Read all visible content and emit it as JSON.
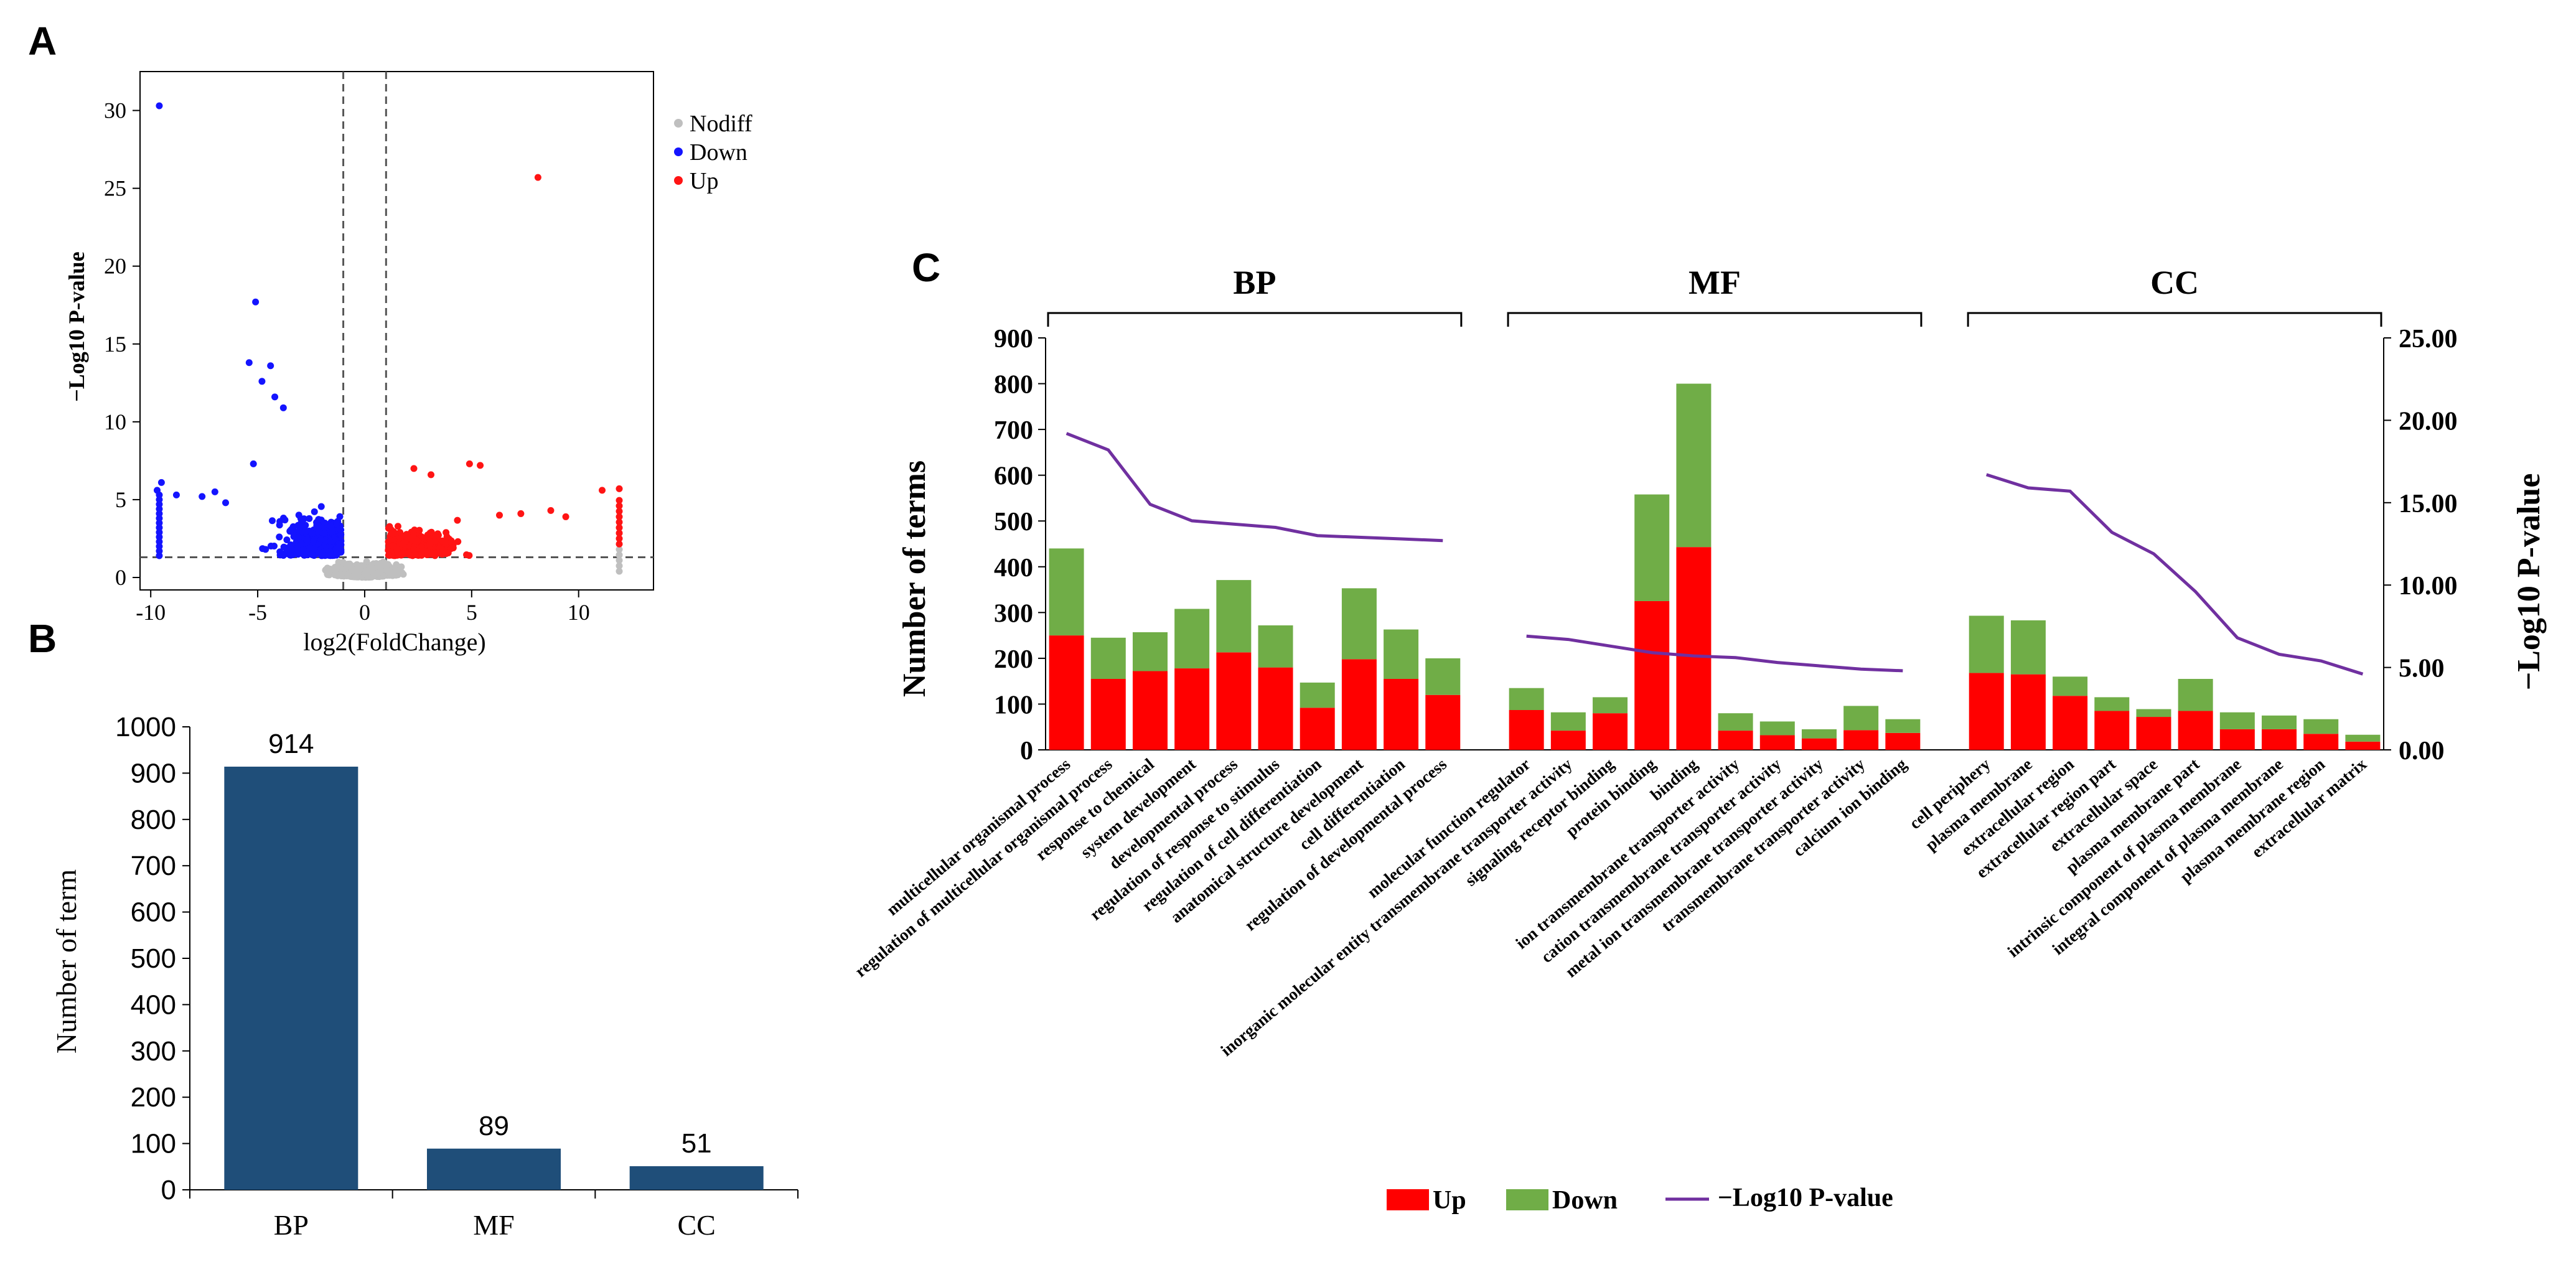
{
  "panel_labels": {
    "a": "A",
    "b": "B",
    "c": "C"
  },
  "colors": {
    "nodiff": "#bfbfbf",
    "down": "#1414ff",
    "up": "#ff1414",
    "bar_b": "#1f4e79",
    "bar_up": "#ff0000",
    "bar_down": "#70ad47",
    "line": "#7030a0"
  },
  "chart_data": [
    {
      "type": "scatter",
      "id": "volcano",
      "xlabel": "log2(FoldChange)",
      "ylabel": "−Log10 P-value",
      "xlim": [
        -10.5,
        13.5
      ],
      "ylim": [
        -0.8,
        32.5
      ],
      "x_ticks": [
        -10,
        -5,
        0,
        5,
        10
      ],
      "y_ticks": [
        0,
        5,
        10,
        15,
        20,
        25,
        30
      ],
      "thresholds": {
        "log2fc": [
          -1,
          1
        ],
        "neg_log10_p": 1.3
      },
      "legend": [
        "Nodiff",
        "Down",
        "Up"
      ],
      "legend_position": "top-right",
      "series": [
        {
          "name": "Down",
          "points": [
            [
              -9.6,
              30.3
            ],
            [
              -5.1,
              17.7
            ],
            [
              -5.4,
              13.8
            ],
            [
              -4.4,
              13.6
            ],
            [
              -4.8,
              12.6
            ],
            [
              -4.2,
              11.6
            ],
            [
              -3.8,
              10.9
            ],
            [
              -5.2,
              7.3
            ],
            [
              -9.5,
              6.1
            ],
            [
              -9.7,
              5.6
            ],
            [
              -8.8,
              5.3
            ],
            [
              -7.6,
              5.2
            ],
            [
              -7.0,
              5.5
            ],
            [
              -6.5,
              4.8
            ]
          ]
        },
        {
          "name": "Up",
          "points": [
            [
              8.1,
              25.7
            ],
            [
              4.9,
              7.3
            ],
            [
              5.4,
              7.2
            ],
            [
              2.3,
              7.0
            ],
            [
              3.1,
              6.6
            ],
            [
              11.1,
              5.6
            ],
            [
              11.9,
              5.7
            ],
            [
              8.7,
              4.3
            ],
            [
              7.3,
              4.1
            ],
            [
              9.4,
              3.9
            ],
            [
              6.3,
              4.0
            ]
          ]
        }
      ]
    },
    {
      "type": "bar",
      "id": "term-counts",
      "categories": [
        "BP",
        "MF",
        "CC"
      ],
      "values": [
        914,
        89,
        51
      ],
      "data_labels": [
        "914",
        "89",
        "51"
      ],
      "ylabel": "Number of term",
      "ylim": [
        0,
        1000
      ],
      "y_ticks": [
        0,
        100,
        200,
        300,
        400,
        500,
        600,
        700,
        800,
        900,
        1000
      ]
    },
    {
      "type": "bar",
      "id": "go-enrichment",
      "stacked": true,
      "groups": [
        {
          "name": "BP",
          "start": 0,
          "end": 9
        },
        {
          "name": "MF",
          "start": 10,
          "end": 19
        },
        {
          "name": "CC",
          "start": 20,
          "end": 29
        }
      ],
      "categories": [
        "multicellular organismal process",
        "regulation of multicellular organismal process",
        "response to chemical",
        "system development",
        "developmental process",
        "regulation of response to stimulus",
        "regulation of cell differentiation",
        "anatomical structure development",
        "cell differentiation",
        "regulation of developmental process",
        "molecular function regulator",
        "inorganic molecular entity transmembrane transporter activity",
        "signaling receptor binding",
        "protein binding",
        "binding",
        "ion transmembrane transporter activity",
        "cation transmembrane transporter activity",
        "metal ion transmembrane transporter activity",
        "transmembrane transporter activity",
        "calcium ion binding",
        "cell periphery",
        "plasma membrane",
        "extracellular region",
        "extracellular region part",
        "extracellular space",
        "plasma membrane part",
        "intrinsic component of plasma membrane",
        "integral component of plasma membrane",
        "plasma membrane region",
        "extracellular matrix"
      ],
      "series": [
        {
          "name": "Up",
          "values": [
            250,
            155,
            172,
            178,
            213,
            180,
            92,
            198,
            155,
            120,
            87,
            42,
            80,
            325,
            443,
            42,
            32,
            25,
            43,
            37,
            168,
            165,
            118,
            85,
            72,
            85,
            45,
            45,
            35,
            18
          ]
        },
        {
          "name": "Down",
          "values": [
            190,
            90,
            85,
            130,
            158,
            92,
            55,
            155,
            108,
            80,
            48,
            40,
            35,
            233,
            357,
            38,
            30,
            20,
            53,
            30,
            125,
            118,
            42,
            30,
            17,
            70,
            37,
            30,
            32,
            15
          ]
        },
        {
          "name": "−Log10 P-value",
          "axis": "right",
          "values": [
            19.2,
            18.2,
            14.9,
            13.9,
            13.7,
            13.5,
            13.0,
            12.9,
            12.8,
            12.7,
            6.9,
            6.7,
            6.3,
            5.9,
            5.7,
            5.6,
            5.3,
            5.1,
            4.9,
            4.8,
            16.7,
            15.9,
            15.7,
            13.2,
            11.9,
            9.6,
            6.8,
            5.8,
            5.4,
            4.6
          ]
        }
      ],
      "ylabel": "Number of terms",
      "y2label": "−Log10 P-value",
      "ylim": [
        0,
        900
      ],
      "y2lim": [
        0,
        25
      ],
      "y_ticks": [
        0,
        100,
        200,
        300,
        400,
        500,
        600,
        700,
        800,
        900
      ],
      "y2_ticks": [
        "0.00",
        "5.00",
        "10.00",
        "15.00",
        "20.00",
        "25.00"
      ],
      "legend": [
        "Up",
        "Down",
        "−Log10 P-value"
      ],
      "legend_position": "bottom"
    }
  ]
}
